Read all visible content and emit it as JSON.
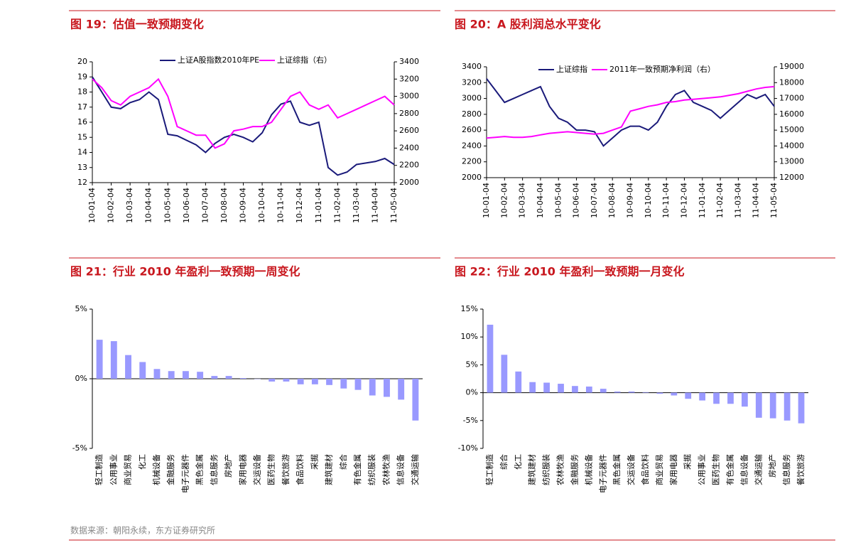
{
  "chart_data": [
    {
      "type": "line",
      "title": "图 19：估值一致预期变化",
      "categories": [
        "10-01-04",
        null,
        "10-02-04",
        null,
        "10-03-04",
        null,
        "10-04-04",
        null,
        "10-05-04",
        null,
        "10-06-04",
        null,
        "10-07-04",
        null,
        "10-08-04",
        null,
        "10-09-04",
        null,
        "10-10-04",
        null,
        "10-11-04",
        null,
        "10-12-04",
        null,
        "11-01-04",
        null,
        "11-02-04",
        null,
        "11-03-04",
        null,
        "11-04-04",
        null,
        "11-05-04"
      ],
      "series": [
        {
          "name": "上证A股指数2010年PE",
          "color": "#1a1a7a",
          "values": [
            19,
            18,
            17,
            16.9,
            17.3,
            17.5,
            18,
            17.5,
            15.2,
            15.1,
            14.8,
            14.5,
            14,
            14.6,
            15,
            15.2,
            15,
            14.7,
            15.3,
            16.5,
            17.2,
            17.4,
            16,
            15.8,
            16,
            13,
            12.5,
            12.7,
            13.2,
            13.3,
            13.4,
            13.6,
            13.2
          ]
        },
        {
          "name": "上证综指（右）",
          "color": "#ff00ff",
          "axis": "y2",
          "values": [
            3200,
            3100,
            2950,
            2900,
            3000,
            3050,
            3100,
            3200,
            3000,
            2650,
            2600,
            2550,
            2550,
            2400,
            2450,
            2600,
            2620,
            2650,
            2650,
            2700,
            2850,
            3000,
            3050,
            2900,
            2850,
            2900,
            2750,
            2800,
            2850,
            2900,
            2950,
            3000,
            2900
          ]
        }
      ],
      "ylim": [
        12,
        20
      ],
      "yticks": [
        12,
        13,
        14,
        15,
        16,
        17,
        18,
        19,
        20
      ],
      "y2lim": [
        2000,
        3400
      ],
      "y2ticks": [
        2000,
        2200,
        2400,
        2600,
        2800,
        3000,
        3200,
        3400
      ]
    },
    {
      "type": "line",
      "title": "图 20：A 股利润总水平变化",
      "categories": [
        "10-01-04",
        null,
        "10-02-04",
        null,
        "10-03-04",
        null,
        "10-04-04",
        null,
        "10-05-04",
        null,
        "10-06-04",
        null,
        "10-07-04",
        null,
        "10-08-04",
        null,
        "10-09-04",
        null,
        "10-10-04",
        null,
        "10-11-04",
        null,
        "10-12-04",
        null,
        "11-01-04",
        null,
        "11-02-04",
        null,
        "11-03-04",
        null,
        "11-04-04",
        null,
        "11-05-04"
      ],
      "series": [
        {
          "name": "上证综指",
          "color": "#1a1a7a",
          "values": [
            3250,
            3100,
            2950,
            3000,
            3050,
            3100,
            3150,
            2900,
            2750,
            2700,
            2600,
            2600,
            2580,
            2400,
            2500,
            2600,
            2650,
            2650,
            2600,
            2700,
            2900,
            3050,
            3100,
            2950,
            2900,
            2850,
            2750,
            2850,
            2950,
            3050,
            3000,
            3050,
            2900
          ]
        },
        {
          "name": "2011年一致预期净利润（右）",
          "color": "#ff00ff",
          "axis": "y2",
          "values": [
            14500,
            14550,
            14600,
            14550,
            14550,
            14600,
            14700,
            14800,
            14850,
            14900,
            14850,
            14800,
            14750,
            14800,
            15000,
            15200,
            16200,
            16350,
            16500,
            16600,
            16750,
            16800,
            16900,
            16950,
            17000,
            17050,
            17100,
            17200,
            17300,
            17450,
            17600,
            17700,
            17750
          ]
        }
      ],
      "ylim": [
        2000,
        3400
      ],
      "yticks": [
        2000,
        2200,
        2400,
        2600,
        2800,
        3000,
        3200,
        3400
      ],
      "y2lim": [
        12000,
        19000
      ],
      "y2ticks": [
        12000,
        13000,
        14000,
        15000,
        16000,
        17000,
        18000,
        19000
      ]
    },
    {
      "type": "bar",
      "title": "图 21：行业 2010 年盈利一致预期一周变化",
      "color": "#9999ff",
      "categories": [
        "轻工制造",
        "公用事业",
        "商业贸易",
        "化工",
        "机械设备",
        "金融服务",
        "电子元器件",
        "黑色金属",
        "信息服务",
        "房地产",
        "家用电器",
        "交运设备",
        "医药生物",
        "餐饮旅游",
        "食品饮料",
        "采掘",
        "建筑建材",
        "综合",
        "有色金属",
        "纺织服装",
        "农林牧渔",
        "信息设备",
        "交通运输"
      ],
      "values": [
        2.8,
        2.7,
        1.7,
        1.2,
        0.7,
        0.55,
        0.55,
        0.5,
        0.2,
        0.2,
        0.05,
        -0.02,
        -0.2,
        -0.2,
        -0.4,
        -0.4,
        -0.45,
        -0.7,
        -0.8,
        -1.2,
        -1.3,
        -1.5,
        -3.0
      ],
      "ylim": [
        -5,
        5
      ],
      "yticks": [
        {
          "value": -5,
          "label": "-5%"
        },
        {
          "value": 0,
          "label": "0%"
        },
        {
          "value": 5,
          "label": "5%"
        }
      ]
    },
    {
      "type": "bar",
      "title": "图 22：行业 2010 年盈利一致预期一月变化",
      "color": "#9999ff",
      "categories": [
        "轻工制造",
        "综合",
        "化工",
        "建筑建材",
        "纺织服装",
        "农林牧渔",
        "金融服务",
        "机械设备",
        "电子元器件",
        "黑色金属",
        "交运设备",
        "食品饮料",
        "商业贸易",
        "家用电器",
        "采掘",
        "公用事业",
        "医药生物",
        "有色金属",
        "信息设备",
        "交通运输",
        "房地产",
        "信息服务",
        "餐饮旅游"
      ],
      "values": [
        12.2,
        6.8,
        3.8,
        1.9,
        1.8,
        1.6,
        1.2,
        1.1,
        0.7,
        0.2,
        0.2,
        0.1,
        -0.2,
        -0.5,
        -1.1,
        -1.4,
        -2,
        -2,
        -2.5,
        -4.5,
        -4.6,
        -5,
        -5.5
      ],
      "ylim": [
        -10,
        15
      ],
      "yticks": [
        {
          "value": -10,
          "label": "-10%"
        },
        {
          "value": -5,
          "label": "-5%"
        },
        {
          "value": 0,
          "label": "0%"
        },
        {
          "value": 5,
          "label": "5%"
        },
        {
          "value": 10,
          "label": "10%"
        },
        {
          "value": 15,
          "label": "15%"
        }
      ]
    }
  ],
  "source": "数据来源：朝阳永续，东方证券研究所"
}
